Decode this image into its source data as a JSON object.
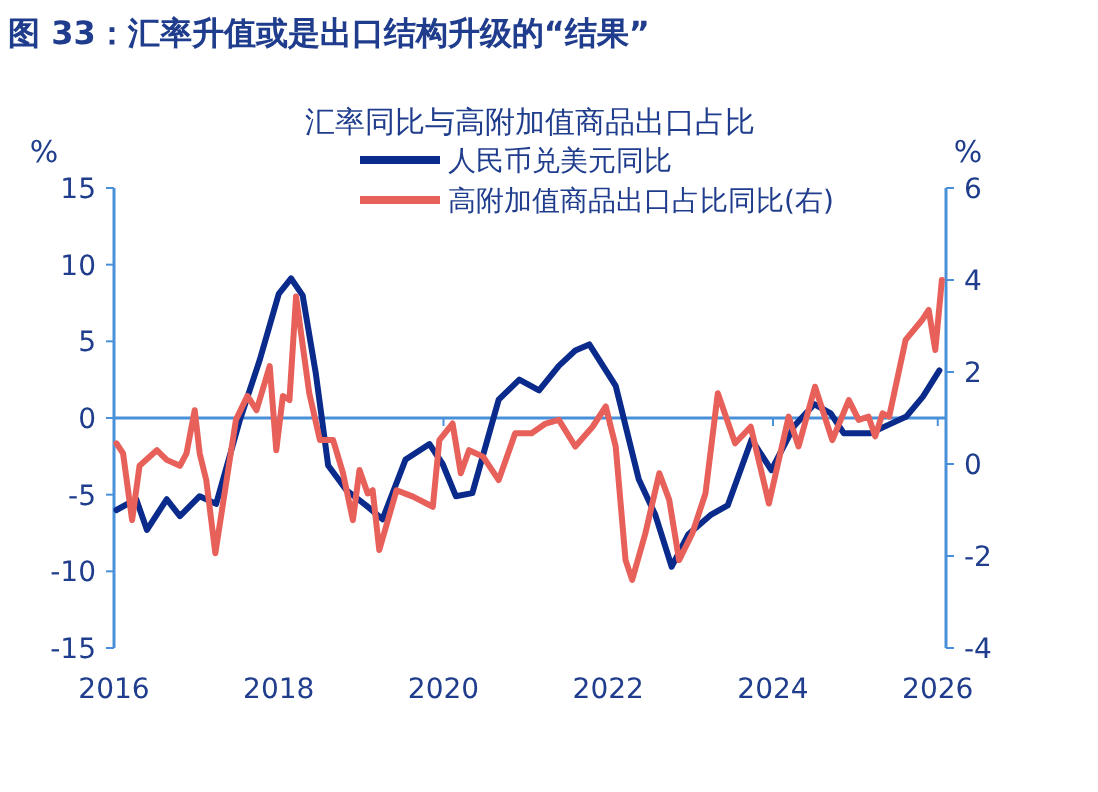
{
  "chart_data": {
    "type": "line",
    "title": "图 33：汇率升值或是出口结构升级的“结果”",
    "subtitle": "汇率同比与高附加值商品出口占比",
    "ylabel": "%",
    "y2label": "%",
    "xlim": [
      2016,
      2026.1
    ],
    "xticks": [
      2016,
      2018,
      2020,
      2022,
      2024,
      2026
    ],
    "ylim": [
      -15,
      15
    ],
    "yticks": [
      -15,
      -10,
      -5,
      0,
      5,
      10,
      15
    ],
    "y2lim": [
      -4,
      6
    ],
    "y2ticks": [
      -4,
      -2,
      0,
      2,
      4,
      6
    ],
    "legend": "top",
    "ref_lines": [
      {
        "axis": "y",
        "value": 0,
        "color": "#4a90d9"
      }
    ],
    "series": [
      {
        "name": "人民币兑美元同比",
        "color": "#0a2a8c",
        "x": [
          2016.03,
          2016.27,
          2016.4,
          2016.64,
          2016.8,
          2017.04,
          2017.24,
          2017.53,
          2017.77,
          2018.0,
          2018.15,
          2018.29,
          2018.45,
          2018.6,
          2018.82,
          2019.06,
          2019.26,
          2019.54,
          2019.83,
          2019.99,
          2020.15,
          2020.35,
          2020.67,
          2020.92,
          2021.16,
          2021.4,
          2021.6,
          2021.77,
          2022.09,
          2022.37,
          2022.57,
          2022.77,
          2022.97,
          2023.25,
          2023.45,
          2023.74,
          2023.98,
          2024.26,
          2024.5,
          2024.7,
          2024.86,
          2025.18,
          2025.42,
          2025.62,
          2025.82,
          2026.02
        ],
        "values": [
          -6.0,
          -5.3,
          -7.3,
          -5.3,
          -6.4,
          -5.1,
          -5.6,
          -0.1,
          3.8,
          8.1,
          9.1,
          8.0,
          2.9,
          -3.1,
          -4.7,
          -5.7,
          -6.6,
          -2.7,
          -1.7,
          -3.0,
          -5.1,
          -4.9,
          1.2,
          2.5,
          1.8,
          3.4,
          4.4,
          4.8,
          2.1,
          -4.0,
          -6.3,
          -9.7,
          -7.6,
          -6.3,
          -5.7,
          -1.4,
          -3.4,
          -0.5,
          0.9,
          0.3,
          -1.0,
          -1.0,
          -0.4,
          0.1,
          1.4,
          3.1
        ]
      },
      {
        "name": "高附加值商品出口占比同比(右)",
        "color": "#e8605a",
        "axis": "y2",
        "x": [
          2016.03,
          2016.11,
          2016.22,
          2016.31,
          2016.52,
          2016.64,
          2016.8,
          2016.88,
          2016.98,
          2017.04,
          2017.12,
          2017.23,
          2017.48,
          2017.62,
          2017.73,
          2017.89,
          2017.97,
          2018.05,
          2018.13,
          2018.21,
          2018.37,
          2018.5,
          2018.66,
          2018.78,
          2018.9,
          2018.98,
          2019.08,
          2019.14,
          2019.22,
          2019.43,
          2019.63,
          2019.87,
          2019.95,
          2020.11,
          2020.21,
          2020.31,
          2020.48,
          2020.67,
          2020.87,
          2021.07,
          2021.24,
          2021.4,
          2021.6,
          2021.81,
          2021.97,
          2022.09,
          2022.21,
          2022.29,
          2022.45,
          2022.62,
          2022.74,
          2022.86,
          2023.02,
          2023.18,
          2023.33,
          2023.54,
          2023.73,
          2023.95,
          2024.19,
          2024.31,
          2024.51,
          2024.72,
          2024.92,
          2025.04,
          2025.16,
          2025.24,
          2025.33,
          2025.41,
          2025.61,
          2025.81,
          2025.89,
          2025.97,
          2026.05
        ],
        "values": [
          0.45,
          0.23,
          -1.22,
          -0.04,
          0.3,
          0.09,
          -0.04,
          0.23,
          1.17,
          0.23,
          -0.35,
          -1.94,
          0.96,
          1.48,
          1.17,
          2.13,
          0.3,
          1.48,
          1.39,
          3.64,
          1.54,
          0.52,
          0.52,
          -0.2,
          -1.22,
          -0.13,
          -0.64,
          -0.57,
          -1.87,
          -0.57,
          -0.71,
          -0.93,
          0.52,
          0.88,
          -0.2,
          0.3,
          0.16,
          -0.35,
          0.67,
          0.67,
          0.88,
          0.96,
          0.38,
          0.81,
          1.25,
          0.38,
          -2.09,
          -2.52,
          -1.51,
          -0.2,
          -0.78,
          -2.09,
          -1.51,
          -0.64,
          1.54,
          0.45,
          0.81,
          -0.86,
          1.03,
          0.38,
          1.68,
          0.52,
          1.39,
          0.96,
          1.03,
          0.6,
          1.1,
          1.03,
          2.7,
          3.13,
          3.35,
          2.48,
          4.0
        ]
      }
    ]
  }
}
